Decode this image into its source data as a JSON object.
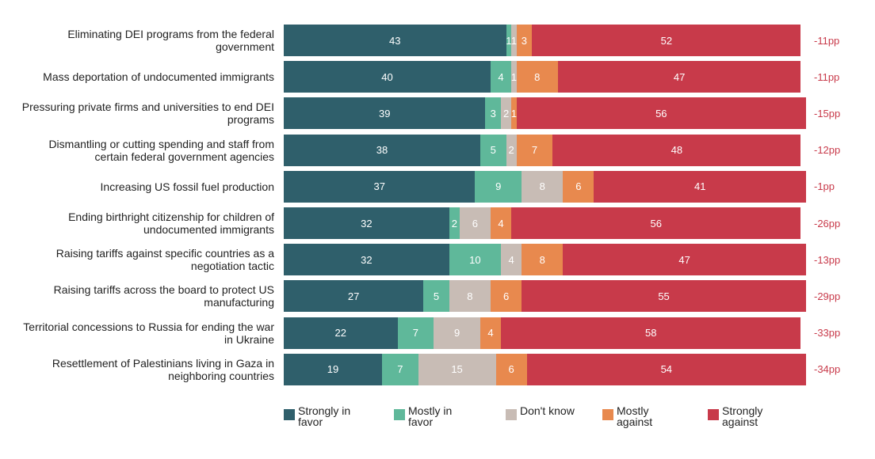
{
  "chart_data": {
    "type": "stacked-bar-horizontal",
    "categories": [
      "Eliminating DEI programs from the federal government",
      "Mass deportation of undocumented immigrants",
      "Pressuring private firms and universities to end DEI programs",
      "Dismantling or cutting spending and staff from certain federal government agencies",
      "Increasing US fossil fuel production",
      "Ending birthright citizenship for children of undocumented immigrants",
      "Raising tariffs against specific countries as a negotiation tactic",
      "Raising tariffs across the board to protect US manufacturing",
      "Territorial concessions to Russia for ending the war in Ukraine",
      "Resettlement of Palestinians living in Gaza in neighboring countries"
    ],
    "series": [
      {
        "name": "Strongly in favor",
        "color": "#2f5f6b",
        "values": [
          43,
          40,
          39,
          38,
          37,
          32,
          32,
          27,
          22,
          19
        ]
      },
      {
        "name": "Mostly in favor",
        "color": "#5fb89a",
        "values": [
          1,
          4,
          3,
          5,
          9,
          2,
          10,
          5,
          7,
          7
        ]
      },
      {
        "name": "Don't know",
        "color": "#c8bcb5",
        "values": [
          1,
          1,
          2,
          2,
          8,
          6,
          4,
          8,
          9,
          15
        ]
      },
      {
        "name": "Mostly against",
        "color": "#e8894e",
        "values": [
          3,
          8,
          1,
          7,
          6,
          4,
          8,
          6,
          4,
          6
        ]
      },
      {
        "name": "Strongly against",
        "color": "#c83a4a",
        "values": [
          52,
          47,
          56,
          48,
          41,
          56,
          47,
          55,
          58,
          54
        ]
      }
    ],
    "annotations": [
      "-11pp",
      "-11pp",
      "-15pp",
      "-12pp",
      "-1pp",
      "-26pp",
      "-13pp",
      "-29pp",
      "-33pp",
      "-34pp"
    ],
    "xlim": [
      0,
      101
    ]
  }
}
